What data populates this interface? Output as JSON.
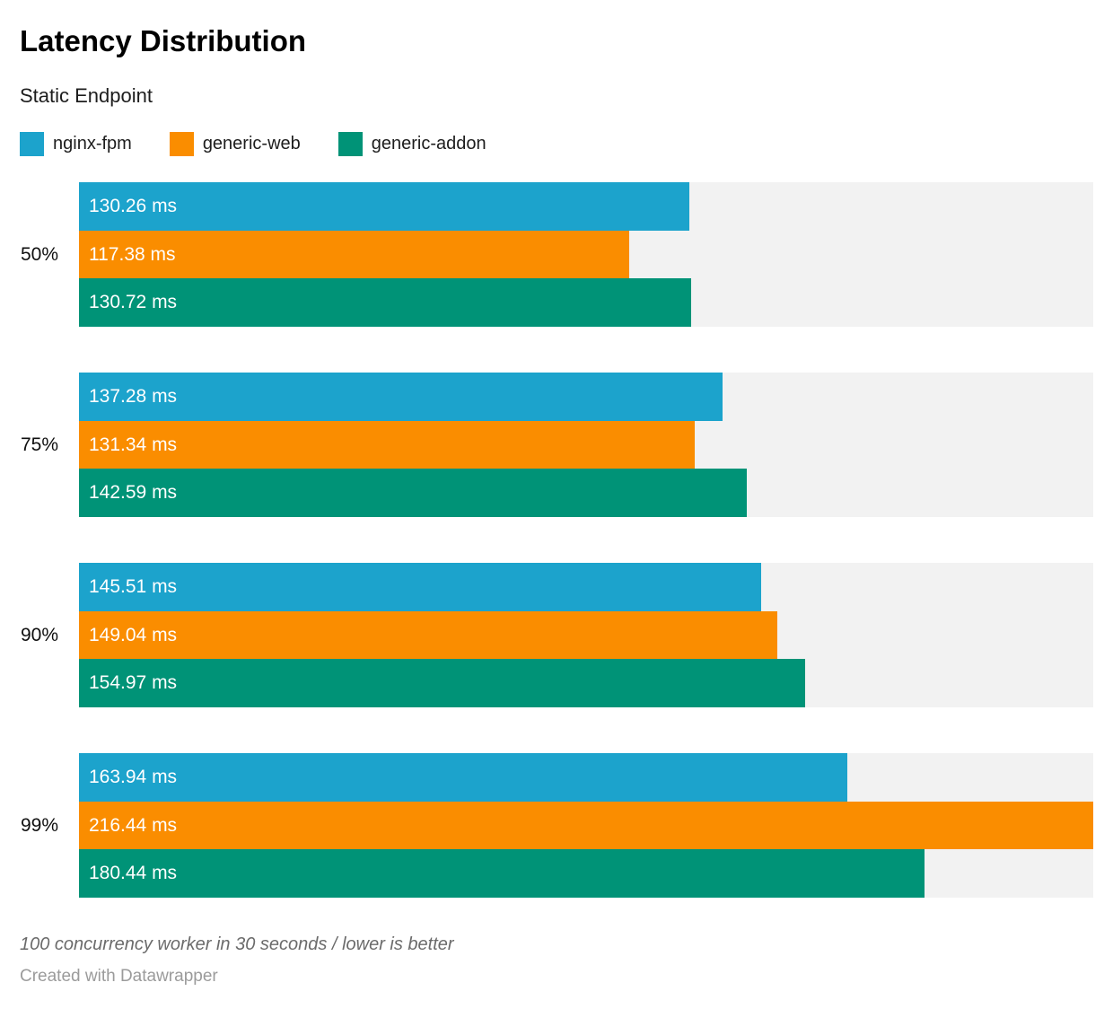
{
  "header": {
    "title": "Latency Distribution",
    "subtitle": "Static Endpoint"
  },
  "legend": {
    "items": [
      {
        "label": "nginx-fpm",
        "color": "#1ca3cc"
      },
      {
        "label": "generic-web",
        "color": "#fa8d00"
      },
      {
        "label": "generic-addon",
        "color": "#009377"
      }
    ]
  },
  "chart_data": {
    "type": "bar",
    "orientation": "horizontal",
    "title": "Latency Distribution",
    "subtitle": "Static Endpoint",
    "categories": [
      "50%",
      "75%",
      "90%",
      "99%"
    ],
    "series": [
      {
        "name": "nginx-fpm",
        "color": "#1ca3cc",
        "values": [
          130.26,
          137.28,
          145.51,
          163.94
        ]
      },
      {
        "name": "generic-web",
        "color": "#fa8d00",
        "values": [
          117.38,
          131.34,
          149.04,
          216.44
        ]
      },
      {
        "name": "generic-addon",
        "color": "#009377",
        "values": [
          130.72,
          142.59,
          154.97,
          180.44
        ]
      }
    ],
    "value_suffix": " ms",
    "xlabel": "",
    "ylabel": "",
    "xlim": [
      0,
      216.44
    ],
    "grid": false,
    "legend_position": "top",
    "track_color": "#f2f2f2",
    "bar_label_color": "#ffffff"
  },
  "footer": {
    "note": "100 concurrency worker in 30 seconds / lower is better",
    "attribution": "Created with Datawrapper"
  }
}
